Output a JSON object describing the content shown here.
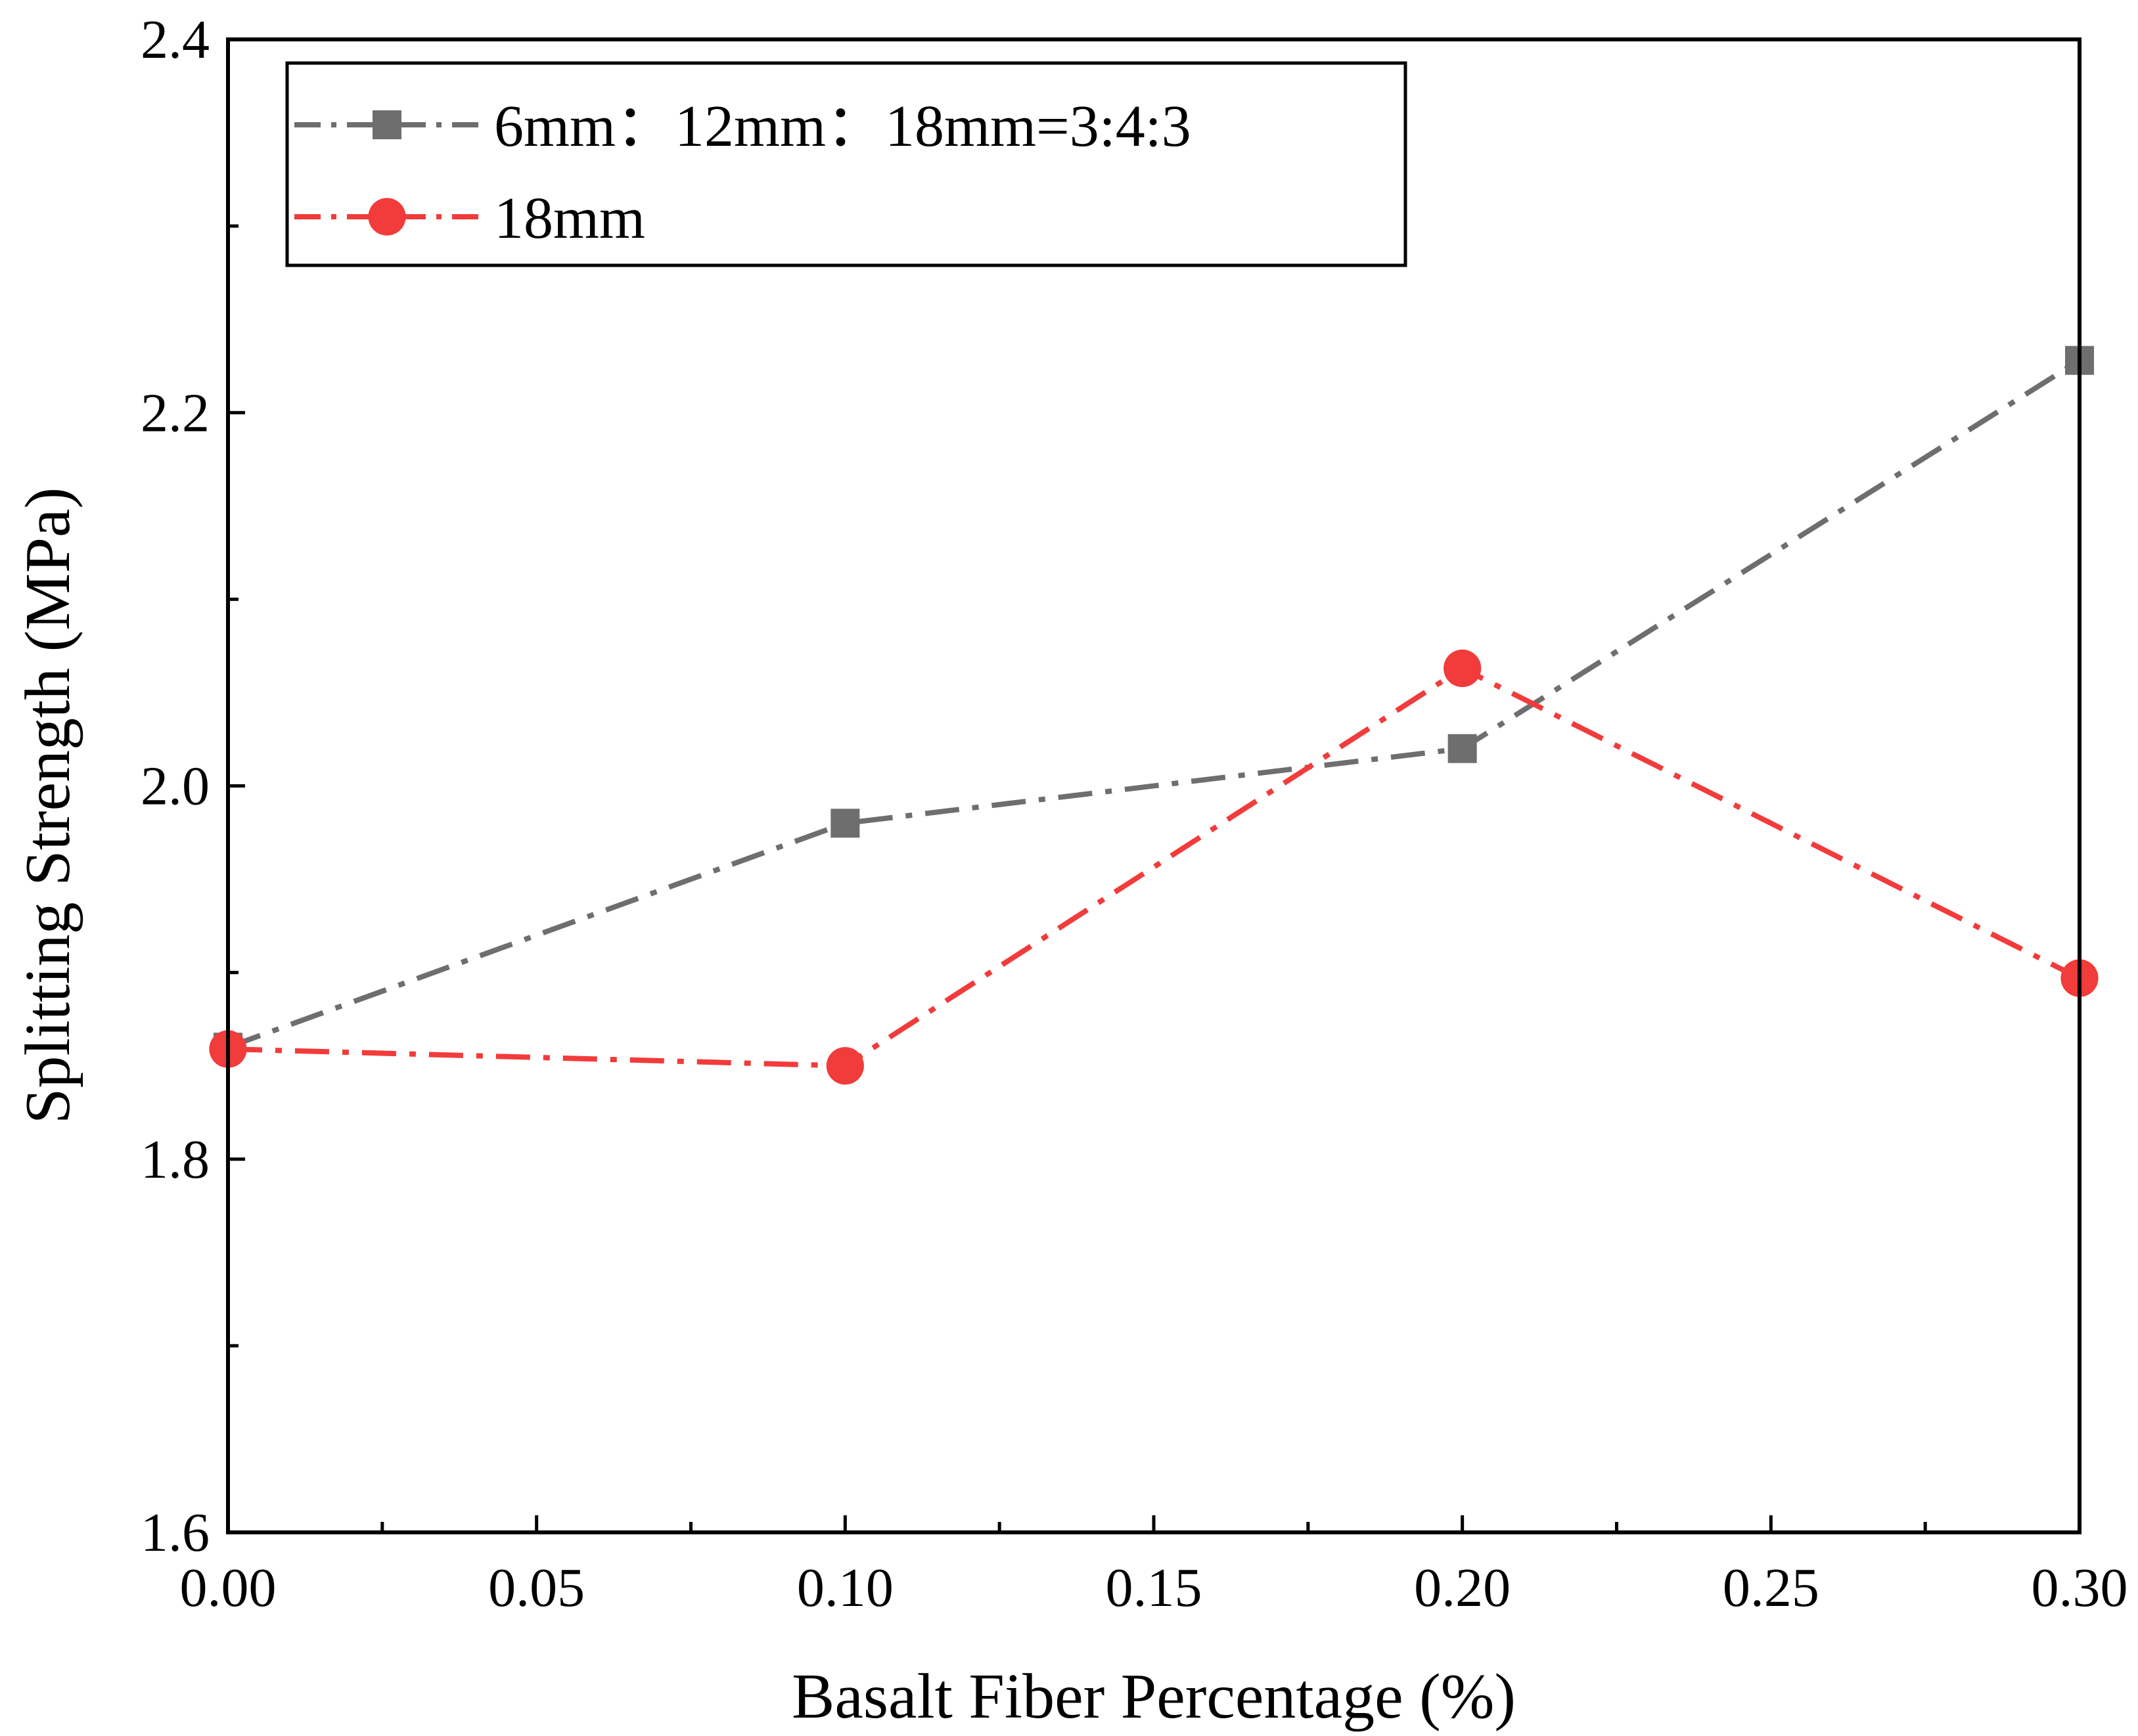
{
  "chart_data": {
    "type": "line",
    "title": "",
    "xlabel": "Basalt Fiber Percentage (%)",
    "ylabel": "Splitting Strength (MPa)",
    "xlim": [
      0.0,
      0.3
    ],
    "ylim": [
      1.6,
      2.4
    ],
    "xticks": [
      "0.00",
      "0.05",
      "0.10",
      "0.15",
      "0.20",
      "0.25",
      "0.30"
    ],
    "yticks": [
      "1.6",
      "1.8",
      "2.0",
      "2.2",
      "2.4"
    ],
    "grid": false,
    "legend_position": "top-left",
    "series": [
      {
        "name": "6mm：12mm：18mm=3:4:3",
        "x": [
          0.0,
          0.1,
          0.2,
          0.3
        ],
        "values": [
          1.86,
          1.98,
          2.02,
          2.228
        ],
        "color": "#6e6e6e",
        "marker": "square",
        "linestyle": "dash-dot"
      },
      {
        "name": "18mm",
        "x": [
          0.0,
          0.1,
          0.2,
          0.3
        ],
        "values": [
          1.859,
          1.85,
          2.063,
          1.897
        ],
        "color": "#f23b3b",
        "marker": "circle",
        "linestyle": "dash-dot"
      }
    ]
  }
}
